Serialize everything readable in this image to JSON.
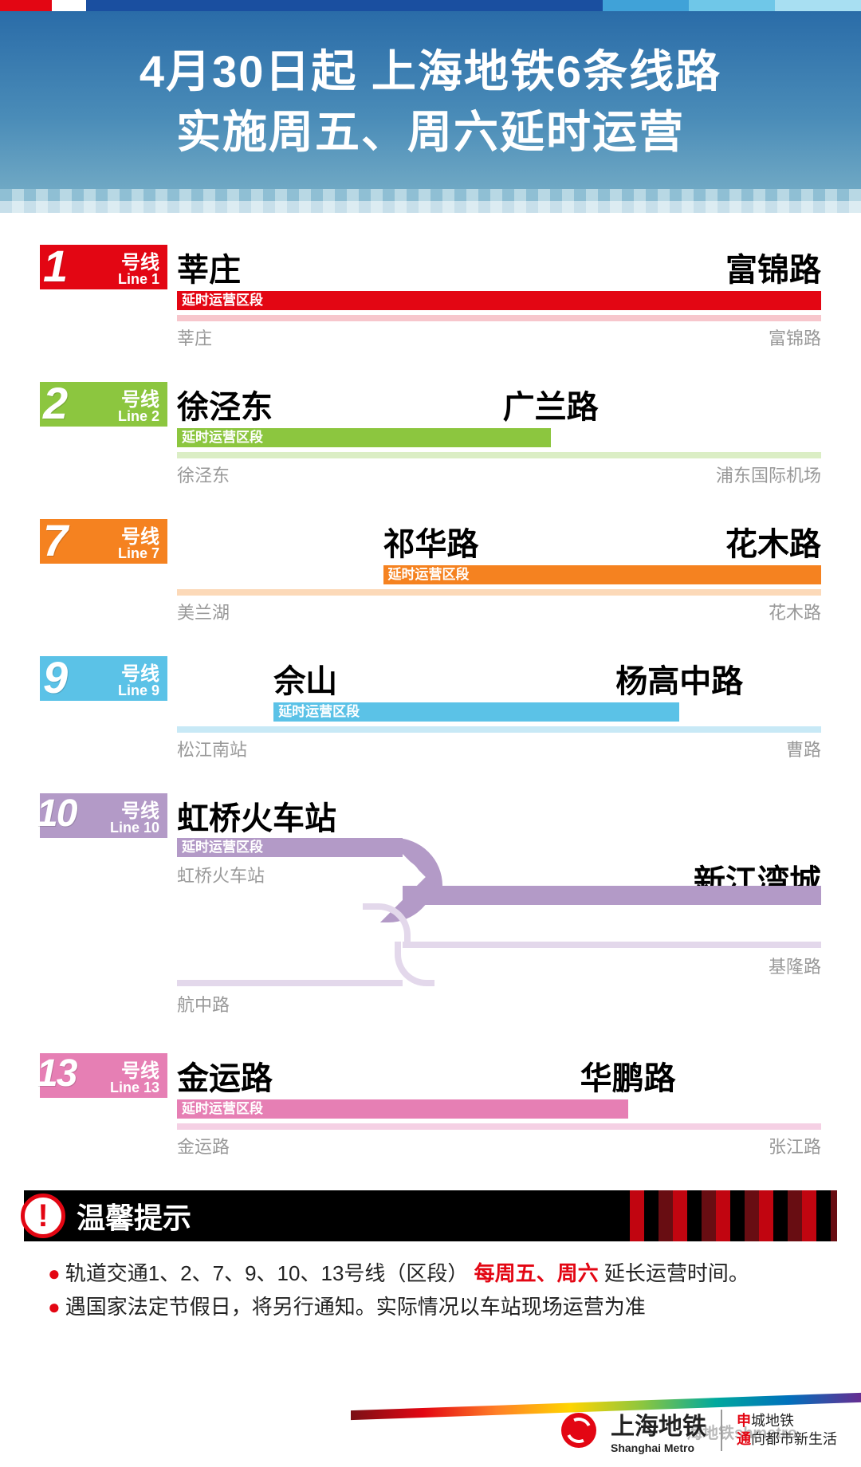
{
  "header": {
    "title_l1": "4月30日起  上海地铁6条线路",
    "title_l2": "实施周五、周六延时运营"
  },
  "ext_label": "延时运营区段",
  "lines": [
    {
      "id": "1",
      "cn": "号线",
      "en": "Line 1",
      "color": "#e30613",
      "light": "#f7c6cc",
      "ext_from": "莘庄",
      "ext_to": "富锦路",
      "ext_start_pct": 0,
      "ext_end_pct": 100,
      "full_from": "莘庄",
      "full_to": "富锦路",
      "ext_to_align": "right"
    },
    {
      "id": "2",
      "cn": "号线",
      "en": "Line 2",
      "color": "#8cc63f",
      "light": "#dbeec5",
      "ext_from": "徐泾东",
      "ext_to": "广兰路",
      "ext_start_pct": 0,
      "ext_end_pct": 58,
      "full_from": "徐泾东",
      "full_to": "浦东国际机场",
      "ext_to_align": "mid"
    },
    {
      "id": "7",
      "cn": "号线",
      "en": "Line 7",
      "color": "#f58220",
      "light": "#fcd9b8",
      "ext_from": "祁华路",
      "ext_to": "花木路",
      "ext_start_pct": 32,
      "ext_end_pct": 100,
      "full_from": "美兰湖",
      "full_to": "花木路",
      "ext_to_align": "right"
    },
    {
      "id": "9",
      "cn": "号线",
      "en": "Line 9",
      "color": "#5bc2e7",
      "light": "#c8e9f6",
      "ext_from": "佘山",
      "ext_to": "杨高中路",
      "ext_start_pct": 15,
      "ext_end_pct": 78,
      "full_from": "松江南站",
      "full_to": "曹路",
      "ext_to_align": "mid"
    },
    {
      "id": "13",
      "cn": "号线",
      "en": "Line 13",
      "color": "#e67fb4",
      "light": "#f5d0e4",
      "ext_from": "金运路",
      "ext_to": "华鹏路",
      "ext_start_pct": 0,
      "ext_end_pct": 70,
      "full_from": "金运路",
      "full_to": "张江路",
      "ext_to_align": "mid"
    }
  ],
  "line10": {
    "id": "10",
    "cn": "号线",
    "en": "Line 10",
    "color": "#b39ac7",
    "light": "#e3d8eb",
    "ext_from": "虹桥火车站",
    "ext_to": "新江湾城",
    "branch1_label": "虹桥火车站",
    "branch2_end": "基隆路",
    "branch3_label": "航中路",
    "ext_width_pct": 35
  },
  "notice": {
    "title": "温馨提示",
    "row1_a": "轨道交通1、2、7、9、10、13号线（区段）",
    "row1_b": "每周五、周六",
    "row1_c": "延长运营时间。",
    "row2": "遇国家法定节假日，将另行通知。实际情况以车站现场运营为准"
  },
  "footer": {
    "brand_cn": "上海地铁",
    "brand_en": "Shanghai Metro",
    "slogan1_a": "申",
    "slogan1_b": "城地铁",
    "slogan2_a": "通",
    "slogan2_b": "向都市新生活",
    "watermark": "海地铁shmetro"
  }
}
